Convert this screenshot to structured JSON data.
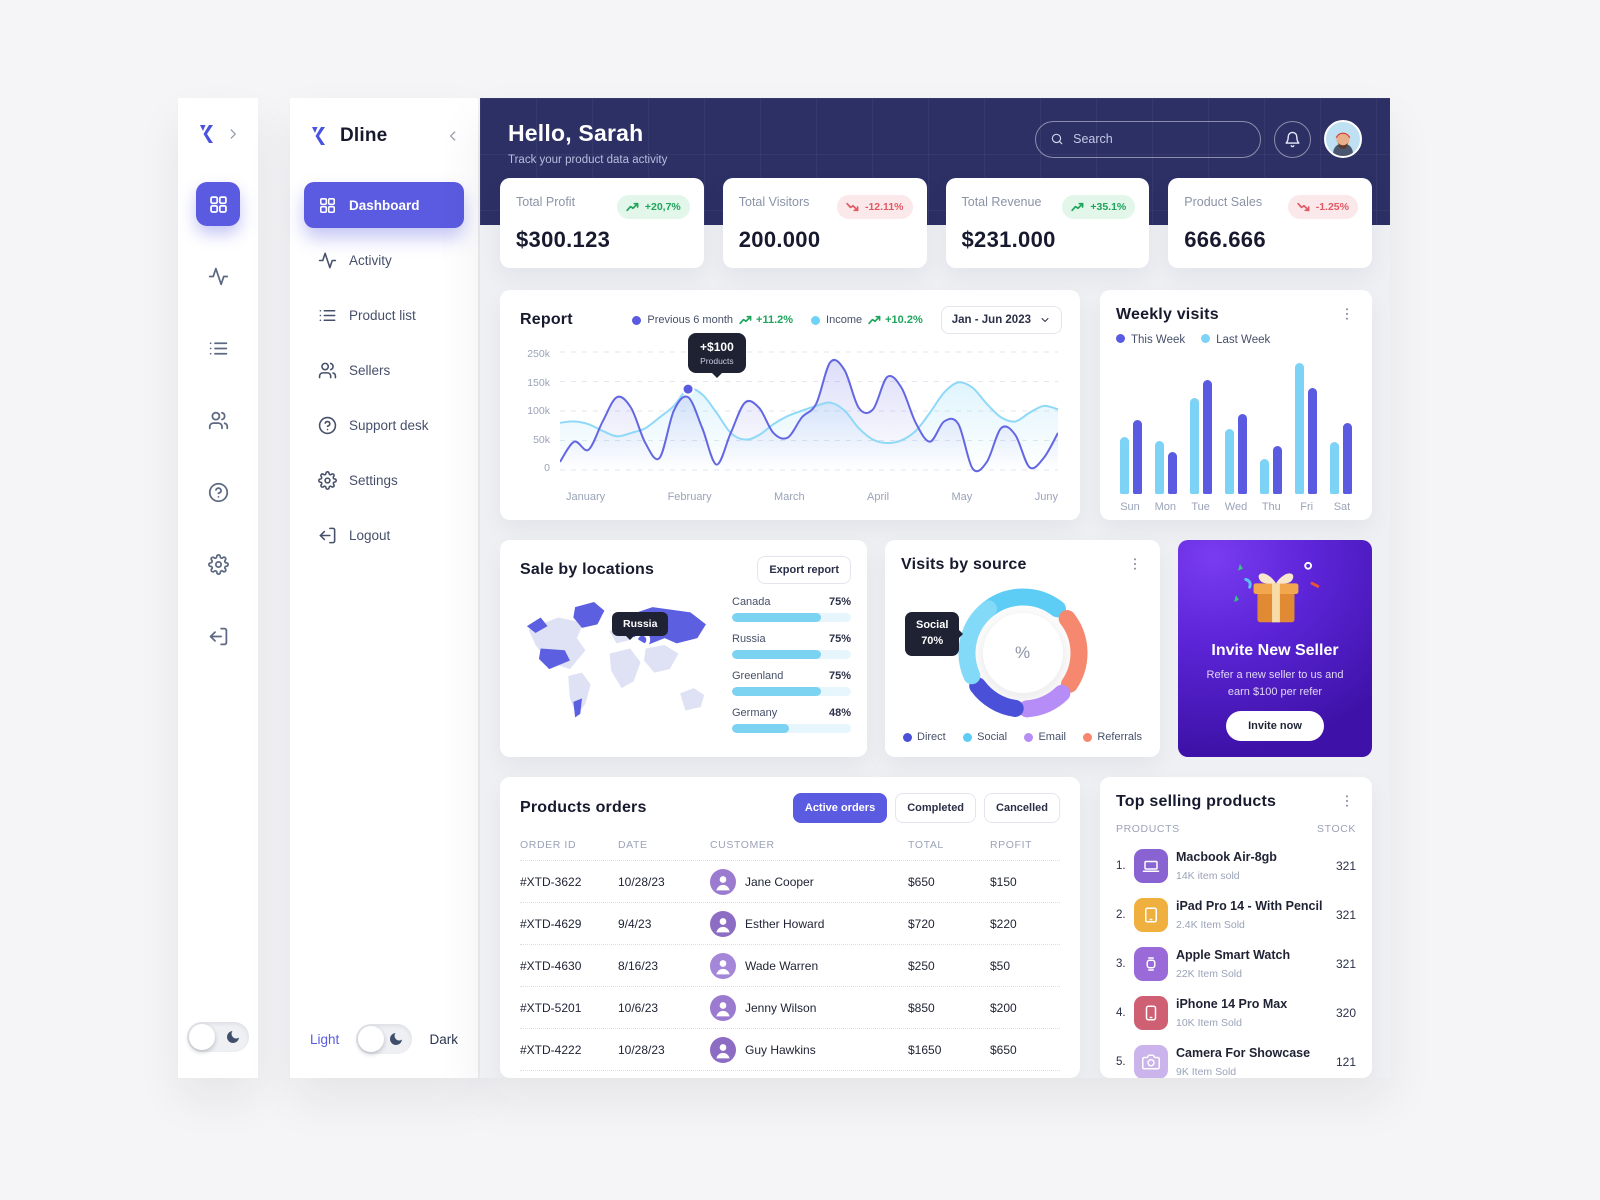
{
  "app": {
    "name": "Dline"
  },
  "sidebar": {
    "items": [
      {
        "label": "Dashboard",
        "icon": "grid-icon",
        "active": true
      },
      {
        "label": "Activity",
        "icon": "activity-icon",
        "active": false
      },
      {
        "label": "Product list",
        "icon": "list-icon",
        "active": false
      },
      {
        "label": "Sellers",
        "icon": "users-icon",
        "active": false
      },
      {
        "label": "Support desk",
        "icon": "help-icon",
        "active": false
      },
      {
        "label": "Settings",
        "icon": "gear-icon",
        "active": false
      },
      {
        "label": "Logout",
        "icon": "logout-icon",
        "active": false
      }
    ],
    "theme": {
      "light": "Light",
      "dark": "Dark"
    }
  },
  "header": {
    "greeting": "Hello, Sarah",
    "subtitle": "Track your product data activity",
    "search_placeholder": "Search"
  },
  "stats": [
    {
      "label": "Total Profit",
      "value": "$300.123",
      "delta": "+20,7%",
      "direction": "up"
    },
    {
      "label": "Total Visitors",
      "value": "200.000",
      "delta": "-12.11%",
      "direction": "down"
    },
    {
      "label": "Total  Revenue",
      "value": "$231.000",
      "delta": "+35.1%",
      "direction": "up"
    },
    {
      "label": "Product Sales",
      "value": "666.666",
      "delta": "-1.25%",
      "direction": "down"
    }
  ],
  "report": {
    "title": "Report",
    "legend": [
      {
        "label": "Previous 6 month",
        "delta": "+11.2%",
        "color": "#5a5be0"
      },
      {
        "label": "Income",
        "delta": "+10.2%",
        "color": "#6fd3f7"
      }
    ],
    "range": "Jan - Jun  2023",
    "tooltip": {
      "value": "+$100",
      "label": "Products"
    }
  },
  "weekly": {
    "title": "Weekly visits",
    "legend": [
      {
        "label": "This Week",
        "color": "#5a5be0"
      },
      {
        "label": "Last Week",
        "color": "#7cd3f5"
      }
    ]
  },
  "locations": {
    "title": "Sale by locations",
    "export_label": "Export report",
    "map_tooltip": "Russia",
    "rows": [
      {
        "name": "Canada",
        "pct": "75%",
        "value": 75
      },
      {
        "name": "Russia",
        "pct": "75%",
        "value": 75
      },
      {
        "name": "Greenland",
        "pct": "75%",
        "value": 75
      },
      {
        "name": "Germany",
        "pct": "48%",
        "value": 48
      }
    ]
  },
  "visits": {
    "title": "Visits by source",
    "center": "%",
    "tooltip": {
      "label": "Social",
      "value": "70%"
    },
    "legend": [
      {
        "label": "Direct",
        "color": "#4a50d8"
      },
      {
        "label": "Social",
        "color": "#5ecdf6"
      },
      {
        "label": "Email",
        "color": "#b68cf6"
      },
      {
        "label": "Referrals",
        "color": "#f5886e"
      }
    ]
  },
  "invite": {
    "title": "Invite New Seller",
    "text": "Refer a new seller to us and earn $100 per refer",
    "button": "Invite now"
  },
  "orders": {
    "title": "Products orders",
    "tabs": [
      {
        "label": "Active orders",
        "active": true
      },
      {
        "label": "Completed",
        "active": false
      },
      {
        "label": "Cancelled",
        "active": false
      }
    ],
    "columns": [
      "ORDER ID",
      "DATE",
      "CUSTOMER",
      "TOTAL",
      "RPOFIT"
    ],
    "rows": [
      {
        "id": "#XTD-3622",
        "date": "10/28/23",
        "customer": "Jane Cooper",
        "total": "$650",
        "profit": "$150"
      },
      {
        "id": "#XTD-4629",
        "date": "9/4/23",
        "customer": "Esther Howard",
        "total": "$720",
        "profit": "$220"
      },
      {
        "id": "#XTD-4630",
        "date": "8/16/23",
        "customer": "Wade Warren",
        "total": "$250",
        "profit": "$50"
      },
      {
        "id": "#XTD-5201",
        "date": "10/6/23",
        "customer": "Jenny Wilson",
        "total": "$850",
        "profit": "$200"
      },
      {
        "id": "#XTD-4222",
        "date": "10/28/23",
        "customer": "Guy Hawkins",
        "total": "$1650",
        "profit": "$650"
      }
    ]
  },
  "top_products": {
    "title": "Top selling products",
    "col_products": "PRODUCTS",
    "col_stock": "STOCK",
    "rows": [
      {
        "rank": "1.",
        "name": "Macbook Air-8gb",
        "sub": "14K item sold",
        "stock": "321",
        "color": "#8a63d2",
        "glyph": "laptop-icon"
      },
      {
        "rank": "2.",
        "name": "iPad Pro 14 - With Pencil",
        "sub": "2.4K Item Sold",
        "stock": "321",
        "color": "#f0b03f",
        "glyph": "tablet-icon"
      },
      {
        "rank": "3.",
        "name": "Apple Smart Watch",
        "sub": "22K Item Sold",
        "stock": "321",
        "color": "#9a6bd8",
        "glyph": "watch-icon"
      },
      {
        "rank": "4.",
        "name": "iPhone 14 Pro Max",
        "sub": "10K Item Sold",
        "stock": "320",
        "color": "#cf5f72",
        "glyph": "phone-icon"
      },
      {
        "rank": "5.",
        "name": "Camera For Showcase",
        "sub": "9K Item Sold",
        "stock": "121",
        "color": "#cbb3ec",
        "glyph": "camera-icon"
      }
    ]
  },
  "chart_data": [
    {
      "type": "line",
      "title": "Report",
      "categories": [
        "January",
        "February",
        "March",
        "April",
        "May",
        "Juny"
      ],
      "y_ticks": [
        "250k",
        "150k",
        "100k",
        "50k",
        "0"
      ],
      "ylim": [
        0,
        175
      ],
      "grid": true,
      "legend_position": "top",
      "series": [
        {
          "name": "Previous 6 month",
          "color": "#6467e3",
          "values": [
            12,
            42,
            30,
            72,
            108,
            92,
            40,
            18,
            88,
            108,
            62,
            8,
            55,
            100,
            92,
            55,
            48,
            78,
            98,
            160,
            148,
            92,
            90,
            138,
            122,
            70,
            42,
            72,
            68,
            2,
            12,
            62,
            52,
            4,
            18,
            55
          ]
        },
        {
          "name": "Income",
          "color": "#8fd9f8",
          "values": [
            70,
            72,
            68,
            58,
            50,
            55,
            62,
            78,
            95,
            120,
            112,
            85,
            55,
            45,
            52,
            68,
            80,
            88,
            95,
            100,
            88,
            62,
            45,
            40,
            44,
            58,
            85,
            115,
            130,
            122,
            98,
            78,
            72,
            85,
            95,
            90
          ]
        }
      ],
      "marker": {
        "series": "Income",
        "point_index": 9,
        "label": "+$100 Products"
      }
    },
    {
      "type": "bar",
      "title": "Weekly visits",
      "categories": [
        "Sun",
        "Mon",
        "Tue",
        "Wed",
        "Thu",
        "Fri",
        "Sat"
      ],
      "series": [
        {
          "name": "Last Week",
          "color": "#7cd3f5",
          "values": [
            54,
            50,
            90,
            61,
            33,
            123,
            49
          ]
        },
        {
          "name": "This Week",
          "color": "#5a5be0",
          "values": [
            70,
            40,
            107,
            75,
            45,
            100,
            67
          ]
        }
      ],
      "ylim": [
        0,
        130
      ]
    },
    {
      "type": "bar",
      "title": "Sale by locations",
      "categories": [
        "Canada",
        "Russia",
        "Greenland",
        "Germany"
      ],
      "values": [
        75,
        75,
        75,
        48
      ],
      "unit": "%"
    },
    {
      "type": "pie",
      "title": "Visits by source",
      "labels": [
        "Direct",
        "Social",
        "Email",
        "Referrals"
      ],
      "highlight": {
        "label": "Social",
        "value": 70
      },
      "segments": [
        {
          "label": "social-top",
          "color": "#5ecdf6",
          "a0": -38,
          "a1": 38
        },
        {
          "label": "referrals",
          "color": "#f5886e",
          "a0": 52,
          "a1": 124
        },
        {
          "label": "email",
          "color": "#b68cf6",
          "a0": 136,
          "a1": 176
        },
        {
          "label": "direct",
          "color": "#4a50d8",
          "a0": 188,
          "a1": 234
        },
        {
          "label": "social-left",
          "color": "#83d9f8",
          "a0": 246,
          "a1": 322
        }
      ]
    }
  ]
}
